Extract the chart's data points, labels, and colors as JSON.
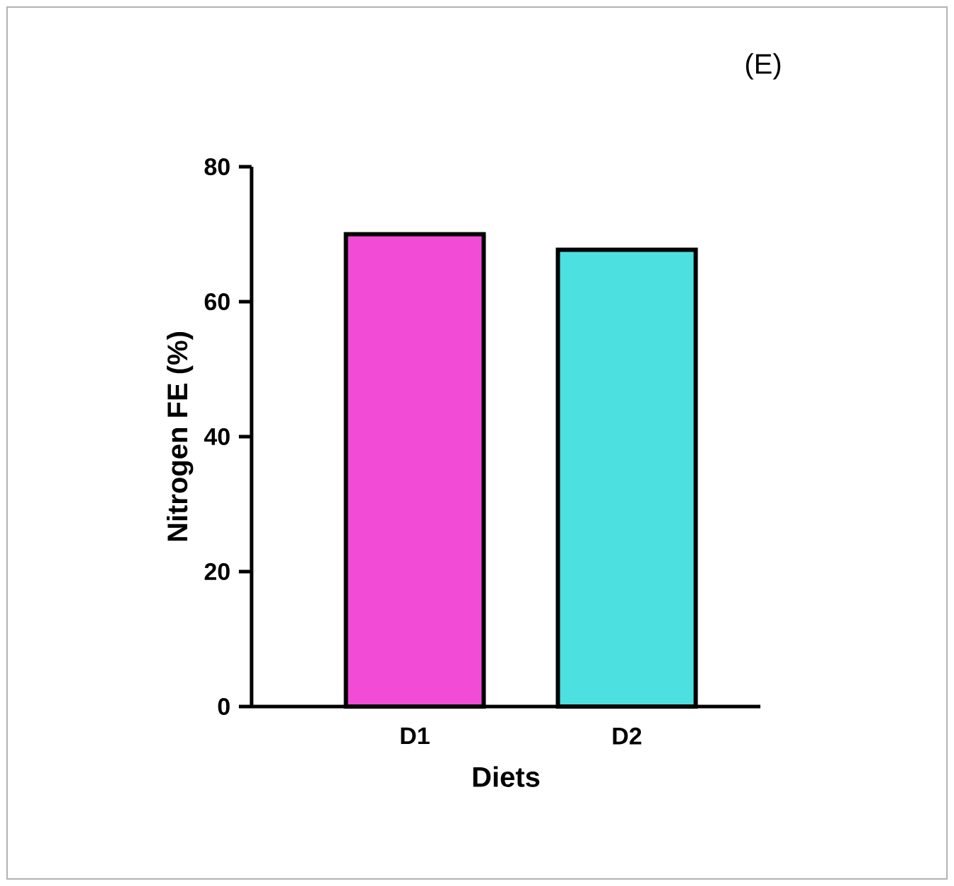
{
  "chart_data": {
    "type": "bar",
    "annotations": [
      "(E)"
    ],
    "xlabel": "Diets",
    "ylabel": "Nitrogen FE (%)",
    "categories": [
      "D1",
      "D2"
    ],
    "values": [
      70,
      67.7
    ],
    "colors": [
      "#f24bd6",
      "#4de0e0"
    ],
    "ylim": [
      0,
      80
    ],
    "yticks": [
      0,
      20,
      40,
      60,
      80
    ]
  }
}
